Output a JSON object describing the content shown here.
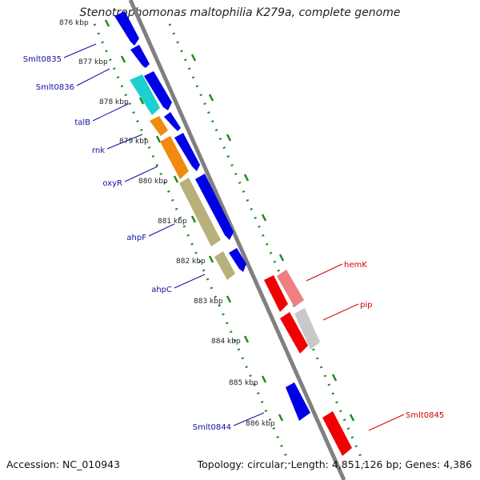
{
  "title": "Stenotrophomonas maltophilia K279a, complete genome",
  "footer": {
    "accession": "Accession: NC_010943",
    "summary": "Topology: circular; Length: 4,851,126 bp; Genes: 4,386"
  },
  "kbp_labels": [
    "876 kbp",
    "877 kbp",
    "878 kbp",
    "879 kbp",
    "880 kbp",
    "881 kbp",
    "882 kbp",
    "883 kbp",
    "884 kbp",
    "885 kbp",
    "886 kbp"
  ],
  "gene_labels_left": [
    "Smlt0835",
    "Smlt0836",
    "talB",
    "rnk",
    "oxyR",
    "ahpF",
    "ahpC",
    "Smlt0844"
  ],
  "gene_labels_right": [
    "hemK",
    "pip",
    "Smlt0845"
  ],
  "colors": {
    "blue": "#0000e6",
    "cyan": "#1ecfd0",
    "orange": "#f08a10",
    "khaki": "#b8b07a",
    "red": "#f00000",
    "pink": "#f08080",
    "gray": "#c8c8c8",
    "backbone": "#808080",
    "tick": "#1f8a1f",
    "label_blue": "#1010a0",
    "label_red": "#d00000"
  }
}
